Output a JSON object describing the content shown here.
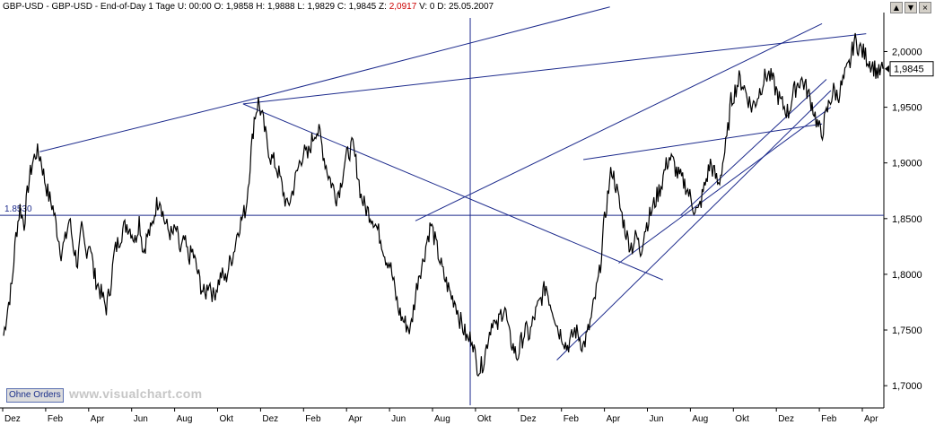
{
  "header": {
    "symbol": "GBP-USD",
    "name": "GBP-USD",
    "period": "End-of-Day 1 Tage",
    "u_label": "U:",
    "u_value": "00:00",
    "o_label": "O:",
    "o_value": "1,9858",
    "h_label": "H:",
    "h_value": "1,9888",
    "l_label": "L:",
    "l_value": "1,9829",
    "c_label": "C:",
    "c_value": "1,9845",
    "z_label": "Z:",
    "z_value": "2,0917",
    "v_label": "V:",
    "v_value": "0",
    "d_label": "D:",
    "d_value": "25.05.2007"
  },
  "window_buttons": [
    "▲",
    "▼",
    "×"
  ],
  "order_button": "Ohne Orders",
  "watermark": "www.visualchart.com",
  "colors": {
    "price_line": "#000000",
    "trendline": "#1c2a8c",
    "axis": "#000000",
    "last_price_box": "#ffffff",
    "z_value": "#cc0000"
  },
  "chart_data": {
    "type": "line",
    "title": "",
    "xlabel": "",
    "ylabel": "",
    "x_ticks": [
      "Dez",
      "Feb",
      "Apr",
      "Jun",
      "Aug",
      "Okt",
      "Dez",
      "Feb",
      "Apr",
      "Jun",
      "Aug",
      "Okt",
      "Dez",
      "Feb",
      "Apr",
      "Jun",
      "Aug",
      "Okt",
      "Dez",
      "Feb",
      "Apr"
    ],
    "y_ticks": [
      "2,0000",
      "1,9500",
      "1,9000",
      "1,8500",
      "1,8000",
      "1,7500",
      "1,7000"
    ],
    "ylim": [
      1.68,
      2.035
    ],
    "grid": false,
    "last_price": "1,9845",
    "horizontal_line": {
      "label": "1.8530",
      "value": 1.853
    },
    "series": [
      {
        "values": [
          1.745,
          1.77,
          1.79,
          1.835,
          1.86,
          1.845,
          1.88,
          1.9,
          1.91,
          1.905,
          1.885,
          1.87,
          1.86,
          1.84,
          1.82,
          1.83,
          1.85,
          1.825,
          1.81,
          1.84,
          1.82,
          1.83,
          1.8,
          1.79,
          1.78,
          1.77,
          1.79,
          1.82,
          1.83,
          1.84,
          1.845,
          1.84,
          1.83,
          1.85,
          1.82,
          1.835,
          1.84,
          1.86,
          1.87,
          1.85,
          1.84,
          1.835,
          1.84,
          1.82,
          1.83,
          1.815,
          1.82,
          1.805,
          1.79,
          1.78,
          1.795,
          1.78,
          1.79,
          1.8,
          1.795,
          1.81,
          1.82,
          1.84,
          1.85,
          1.86,
          1.9,
          1.94,
          1.955,
          1.94,
          1.92,
          1.905,
          1.9,
          1.89,
          1.875,
          1.86,
          1.87,
          1.885,
          1.9,
          1.91,
          1.905,
          1.92,
          1.93,
          1.925,
          1.905,
          1.89,
          1.88,
          1.87,
          1.88,
          1.9,
          1.91,
          1.915,
          1.895,
          1.87,
          1.86,
          1.855,
          1.85,
          1.84,
          1.83,
          1.815,
          1.81,
          1.79,
          1.77,
          1.76,
          1.755,
          1.75,
          1.775,
          1.8,
          1.81,
          1.83,
          1.845,
          1.83,
          1.815,
          1.8,
          1.79,
          1.78,
          1.775,
          1.76,
          1.75,
          1.74,
          1.745,
          1.72,
          1.715,
          1.725,
          1.745,
          1.76,
          1.75,
          1.765,
          1.77,
          1.745,
          1.735,
          1.725,
          1.74,
          1.75,
          1.745,
          1.76,
          1.77,
          1.78,
          1.79,
          1.775,
          1.765,
          1.75,
          1.745,
          1.735,
          1.74,
          1.75,
          1.745,
          1.735,
          1.745,
          1.76,
          1.78,
          1.8,
          1.84,
          1.87,
          1.895,
          1.88,
          1.86,
          1.845,
          1.83,
          1.825,
          1.835,
          1.82,
          1.84,
          1.85,
          1.86,
          1.87,
          1.88,
          1.895,
          1.905,
          1.9,
          1.89,
          1.885,
          1.88,
          1.87,
          1.86,
          1.855,
          1.87,
          1.885,
          1.9,
          1.89,
          1.88,
          1.9,
          1.92,
          1.955,
          1.965,
          1.975,
          1.97,
          1.96,
          1.95,
          1.955,
          1.965,
          1.975,
          1.98,
          1.975,
          1.965,
          1.955,
          1.95,
          1.945,
          1.96,
          1.97,
          1.975,
          1.97,
          1.96,
          1.95,
          1.935,
          1.925,
          1.94,
          1.955,
          1.965,
          1.96,
          1.97,
          1.98,
          1.99,
          2.01,
          2.005,
          2.0,
          1.995,
          1.99,
          1.985,
          1.98,
          1.9845
        ]
      }
    ],
    "trendlines": [
      {
        "x1": 0.045,
        "y1": 1.91,
        "x2": 0.275,
        "y2": 1.955
      },
      {
        "x1": 0.275,
        "y1": 1.955,
        "x2": 0.69,
        "y2": 2.04
      },
      {
        "x1": 0.275,
        "y1": 1.953,
        "x2": 0.98,
        "y2": 2.016
      },
      {
        "x1": 0.275,
        "y1": 1.953,
        "x2": 0.75,
        "y2": 1.795
      },
      {
        "x1": 0.47,
        "y1": 1.848,
        "x2": 0.93,
        "y2": 2.025
      },
      {
        "x1": 0.66,
        "y1": 1.903,
        "x2": 0.93,
        "y2": 1.935
      },
      {
        "x1": 0.63,
        "y1": 1.723,
        "x2": 0.94,
        "y2": 1.965
      },
      {
        "x1": 0.7,
        "y1": 1.81,
        "x2": 0.94,
        "y2": 1.95
      },
      {
        "x1": 0.77,
        "y1": 1.853,
        "x2": 0.935,
        "y2": 1.975
      }
    ],
    "crosshair_vertical_x": 0.532
  }
}
